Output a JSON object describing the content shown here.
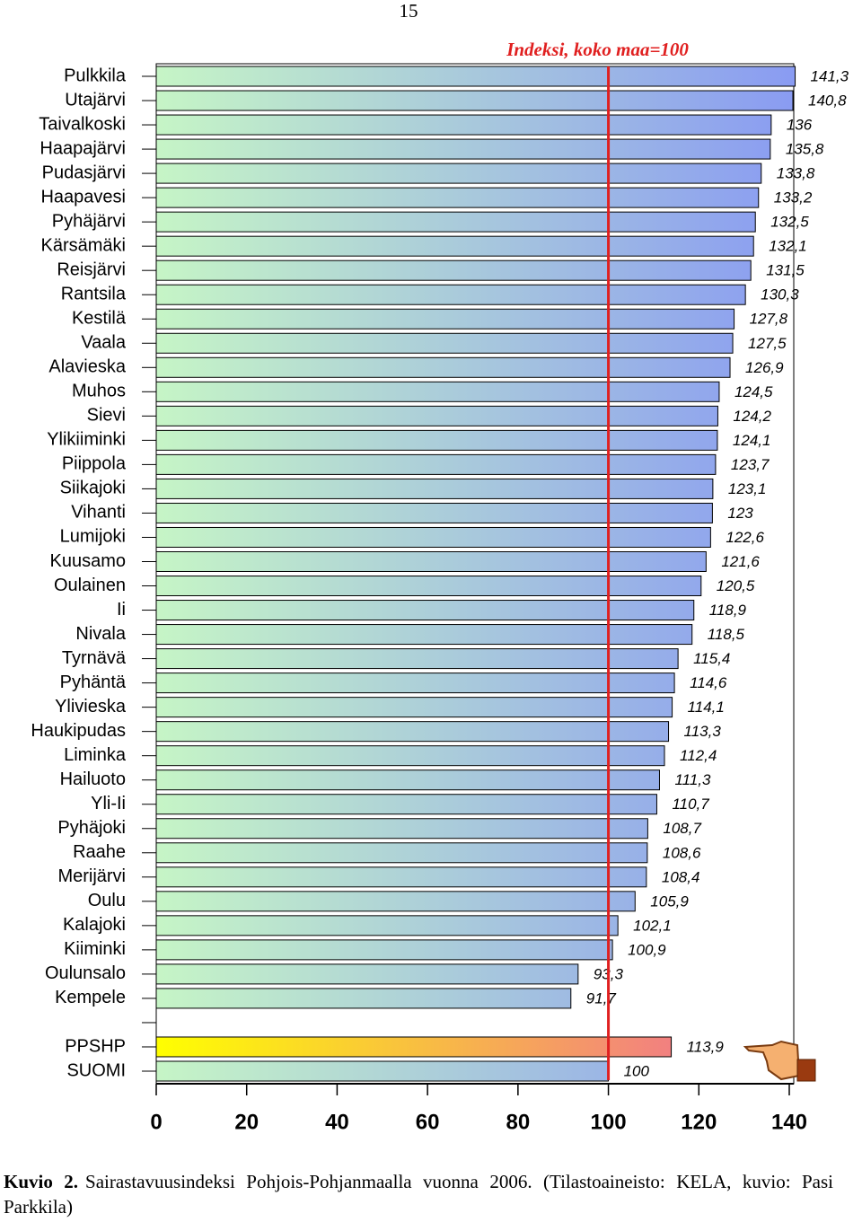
{
  "page_number": "15",
  "caption": {
    "label": "Kuvio 2.",
    "text": "Sairastavuusindeksi Pohjois-Pohjanmaalla vuonna 2006.  (Tilastoaineisto: KELA, kuvio: Pasi Parkkila)"
  },
  "chart_data": {
    "type": "barh",
    "categories": [
      "Pulkkila",
      "Utajärvi",
      "Taivalkoski",
      "Haapajärvi",
      "Pudasjärvi",
      "Haapavesi",
      "Pyhäjärvi",
      "Kärsämäki",
      "Reisjärvi",
      "Rantsila",
      "Kestilä",
      "Vaala",
      "Alavieska",
      "Muhos",
      "Sievi",
      "Ylikiiminki",
      "Piippola",
      "Siikajoki",
      "Vihanti",
      "Lumijoki",
      "Kuusamo",
      "Oulainen",
      "Ii",
      "Nivala",
      "Tyrnävä",
      "Pyhäntä",
      "Ylivieska",
      "Haukipudas",
      "Liminka",
      "Hailuoto",
      "Yli-Ii",
      "Pyhäjoki",
      "Raahe",
      "Merijärvi",
      "Oulu",
      "Kalajoki",
      "Kiiminki",
      "Oulunsalo",
      "Kempele",
      null,
      "PPSHP",
      "SUOMI"
    ],
    "values": [
      141.3,
      140.8,
      136,
      135.8,
      133.8,
      133.2,
      132.5,
      132.1,
      131.5,
      130.3,
      127.8,
      127.5,
      126.9,
      124.5,
      124.2,
      124.1,
      123.7,
      123.1,
      123,
      122.6,
      121.6,
      120.5,
      118.9,
      118.5,
      115.4,
      114.6,
      114.1,
      113.3,
      112.4,
      111.3,
      110.7,
      108.7,
      108.6,
      108.4,
      105.9,
      102.1,
      100.9,
      93.3,
      91.7,
      null,
      113.9,
      100
    ],
    "value_labels": [
      "141,3",
      "140,8",
      "136",
      "135,8",
      "133,8",
      "133,2",
      "132,5",
      "132,1",
      "131,5",
      "130,3",
      "127,8",
      "127,5",
      "126,9",
      "124,5",
      "124,2",
      "124,1",
      "123,7",
      "123,1",
      "123",
      "122,6",
      "121,6",
      "120,5",
      "118,9",
      "118,5",
      "115,4",
      "114,6",
      "114,1",
      "113,3",
      "112,4",
      "111,3",
      "110,7",
      "108,7",
      "108,6",
      "108,4",
      "105,9",
      "102,1",
      "100,9",
      "93,3",
      "91,7",
      null,
      "113,9",
      "100"
    ],
    "colors": [
      "#c6f5c6",
      "#8a9cf2"
    ],
    "highlight_category": "PPSHP",
    "highlight_colors": [
      "#ffff00",
      "#f28080"
    ],
    "reference_line": {
      "value": 100,
      "label": "Indeksi, koko maa=100",
      "color": "#e02020"
    },
    "xlim": [
      0,
      140
    ],
    "xticks": [
      0,
      20,
      40,
      60,
      80,
      100,
      120,
      140
    ]
  }
}
